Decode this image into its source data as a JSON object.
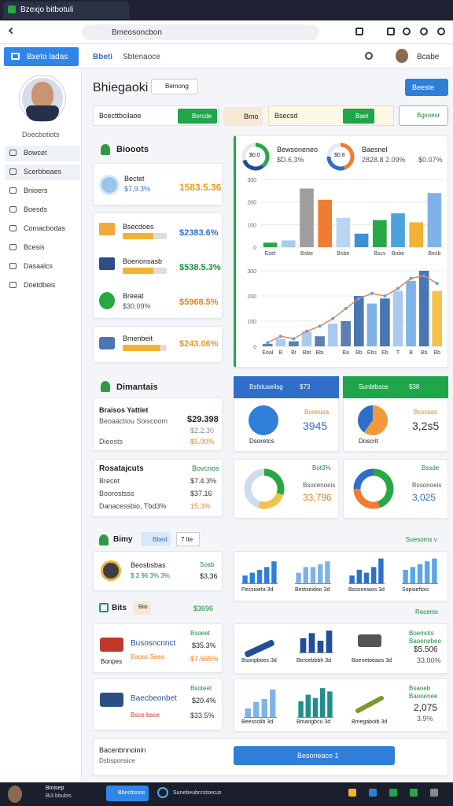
{
  "browser": {
    "tab_title": "Bzexjo bitbotuli",
    "address": "Bmeosoncbon"
  },
  "header": {
    "app_button": "Bxeto ladas",
    "nav": [
      "Bbetì",
      "Sbtenaoce"
    ],
    "user": "Bcabe"
  },
  "sidebar": {
    "profile_name": "Doecbotiots",
    "menu": [
      "Bowcet",
      "Scerbbeaes",
      "Bnioers",
      "Boesds",
      "Comacbodas",
      "Bcesis",
      "Dasaalcs",
      "Doetdbeis"
    ]
  },
  "page": {
    "title": "Bhiegaoki",
    "dropdown": "Bemong",
    "primary_button": "Beeste"
  },
  "filters": {
    "search_label": "Bcecttbcilaoe",
    "search_button": "Bercde",
    "chip": "Bmo",
    "field_label": "Bsecsd",
    "field_button": "Baet",
    "outline_button": "Bgsoesr"
  },
  "products": {
    "title": "Biooots",
    "featured": {
      "name": "Bectet",
      "sub": "$7,9.3%",
      "value": "1583.5.36"
    },
    "items": [
      {
        "name": "Bsecdoes",
        "value": "$2383.6%"
      },
      {
        "name": "Boenonsasb",
        "value": "$538.5.3%"
      },
      {
        "name": "Breeat",
        "sub": "$30.09%",
        "value": "$5968.5%"
      }
    ],
    "last": {
      "name": "Bmenbeit",
      "value": "$243.06%"
    }
  },
  "overview": {
    "stats": [
      {
        "name": "Bewsoneneo",
        "value": "$D.6,3%",
        "badge": "$0.0",
        "donut": {
          "values": [
            40,
            30,
            30
          ],
          "colors": [
            "#27a844",
            "#1f4e9c",
            "#e6e9ef"
          ]
        }
      },
      {
        "name": "Baesnel",
        "value": "2828.8 2.09%",
        "extra": "$0.07%",
        "badge": "$0.8",
        "donut": {
          "values": [
            45,
            30,
            25
          ],
          "colors": [
            "#f07c32",
            "#2f6fc9",
            "#e6e9ef"
          ]
        }
      }
    ],
    "bar_chart": {
      "type": "bar",
      "ylim": [
        0,
        300
      ],
      "yticks": [
        0,
        100,
        200,
        300
      ],
      "categories": [
        "Eoel",
        null,
        "Bsbe",
        null,
        "Bsbe",
        null,
        "Bscs",
        "Bobe",
        null,
        "Besb"
      ],
      "values": [
        20,
        30,
        260,
        210,
        130,
        60,
        120,
        150,
        110,
        240
      ],
      "colors": [
        "#27a844",
        "#a9cbee",
        "#9e9e9e",
        "#f07c32",
        "#b8d6f2",
        "#3d8fd9",
        "#27a844",
        "#4aa3df",
        "#f2b233",
        "#7fb3e8"
      ]
    },
    "combo_chart": {
      "type": "bar-line",
      "ylim": [
        0,
        300
      ],
      "yticks": [
        0,
        100,
        200,
        300
      ],
      "categories": [
        "Eoal",
        "B",
        "Bt",
        "Bbt",
        "Bbi",
        null,
        "Ba",
        "Bb",
        "Ebs",
        "Eb",
        "T",
        "B",
        "Bb",
        "Bb"
      ],
      "values": [
        10,
        30,
        20,
        60,
        40,
        90,
        100,
        200,
        170,
        190,
        220,
        260,
        300,
        220
      ],
      "colors": [
        "#5a7fb0",
        "#a9cbee",
        "#5a7fb0",
        "#a9cbee",
        "#5a7fb0",
        "#a9cbee",
        "#5a7fb0",
        "#4a76b3",
        "#7fb3e8",
        "#4a76b3",
        "#a9cbee",
        "#7fb3e8",
        "#4a76b3",
        "#f2c24a"
      ],
      "line": {
        "color": "#e8855a",
        "values": [
          15,
          40,
          30,
          60,
          80,
          110,
          150,
          190,
          210,
          200,
          230,
          270,
          280,
          250
        ]
      }
    }
  },
  "dimantais": {
    "title": "Dimantais",
    "summary": {
      "title": "Braisos Yattiet",
      "value": "$29.398",
      "rows": [
        [
          "Beoaactiou Soiscoom",
          "$2.2.30"
        ],
        [
          "Dieosts",
          "$5.90%"
        ]
      ]
    },
    "projects": {
      "title": "Rosatajcuts",
      "value": "Bovcnos",
      "rows": [
        [
          "Brecet",
          "$7.4.3%"
        ],
        [
          "Boorostsss",
          "$37.16"
        ],
        [
          "Danacessbio, Tbd3%",
          "15.3%"
        ]
      ]
    },
    "panels": [
      {
        "header": "Bsfstuseilsg",
        "badge": "$73",
        "caption": "Dsoretcs",
        "label": "3945",
        "tag": "Bsoeusa",
        "pie": {
          "values": [
            100
          ],
          "colors": [
            "#2f7fd8"
          ]
        }
      },
      {
        "header": "Sunbtbsos",
        "badge": "$38",
        "caption": "Doscrit",
        "label": "3,2s5",
        "tag": "Bcsosas",
        "pie": {
          "values": [
            60,
            40
          ],
          "colors": [
            "#f29a3a",
            "#2f6fc9"
          ]
        }
      }
    ],
    "donuts": [
      {
        "tag": "Bot3%",
        "name": "Bsocenoeis",
        "value": "33,796",
        "donut": {
          "values": [
            30,
            25,
            45
          ],
          "colors": [
            "#27a844",
            "#f2c24a",
            "#cfdcea"
          ]
        }
      },
      {
        "tag": "Bssde",
        "name": "Bsoonoeis",
        "value": "3,025",
        "donut": {
          "values": [
            45,
            30,
            25
          ],
          "colors": [
            "#27a844",
            "#f07c32",
            "#2f6fc9"
          ]
        }
      }
    ]
  },
  "bimy": {
    "title": "Bimy",
    "tabs": [
      "Bbed",
      "7 lte"
    ],
    "right_label": "Suesoms v",
    "card": {
      "name": "Beosbsbas",
      "tag": "Sosb",
      "sub": "$ 3 96 3% 3%",
      "value": "$3,36"
    },
    "minis": [
      {
        "label": "Pecsioeta 3d",
        "values": [
          3,
          4,
          5,
          6,
          8
        ],
        "color": "#2f7fd8",
        "ylim": [
          0,
          10
        ]
      },
      {
        "label": "Bestseidoo 3d",
        "values": [
          4,
          6,
          6,
          7,
          8
        ],
        "color": "#7fb3e8",
        "ylim": [
          0,
          10
        ]
      },
      {
        "label": "Bosseeiaos 3d",
        "values": [
          3,
          5,
          4,
          6,
          9
        ],
        "color": "#2f6fc9",
        "ylim": [
          0,
          10
        ]
      },
      {
        "label": "Sopsieftois",
        "values": [
          5,
          6,
          7,
          8,
          9
        ],
        "color": "#5aa6e6",
        "ylim": [
          0,
          10
        ]
      }
    ]
  },
  "bits": {
    "title": "Bits",
    "chip": "Biio",
    "right_value": "$3696",
    "right_label": "Rocenis",
    "cards": [
      {
        "name": "Busosncnnct",
        "value": "$35.3%",
        "sub": "Baoss Seea",
        "sub_value": "$7.565%",
        "foot": "Bonpes",
        "tag": "Bsoeet"
      },
      {
        "name": "Baecbeonbet",
        "value": "$20.4%",
        "sub": "Bsce bsce",
        "sub_value": "$33.5%",
        "tag": "Bsoteet"
      }
    ],
    "row1": {
      "tag": "Boemots",
      "items": [
        "Bsonpboes 3d",
        "Beroebbbh 3d",
        "Boenetoeaos 3d"
      ],
      "name": "Baoenebee",
      "value": "$5.506",
      "extra": "33.00%",
      "mini": {
        "values": [
          6,
          8,
          5,
          9
        ],
        "color": "#1f4e9c",
        "ylim": [
          0,
          10
        ]
      }
    },
    "row2": {
      "tag": "Bsaoeb",
      "items": [
        "Beessolib 3d",
        "Bmangbcu 3d",
        "Bmegaboib 3d"
      ],
      "name": "Baooenee",
      "value": "2,075",
      "extra": "3.9%",
      "minis": [
        {
          "values": [
            3,
            5,
            6,
            9
          ],
          "color": "#7fb3e8",
          "ylim": [
            0,
            10
          ]
        },
        {
          "values": [
            5,
            7,
            6,
            9,
            8
          ],
          "color": "#1f8f8a",
          "ylim": [
            0,
            10
          ]
        }
      ]
    }
  },
  "footer": {
    "title": "Bacenbnnoinin",
    "sub": "Dsbsponsice",
    "button": "Besoneaco 1"
  },
  "taskbar": {
    "user": "Bmisep",
    "user_sub": "Bi3 bbubis",
    "app": "Bbecltsnos",
    "window": "Sunebeubrcstsecus"
  }
}
